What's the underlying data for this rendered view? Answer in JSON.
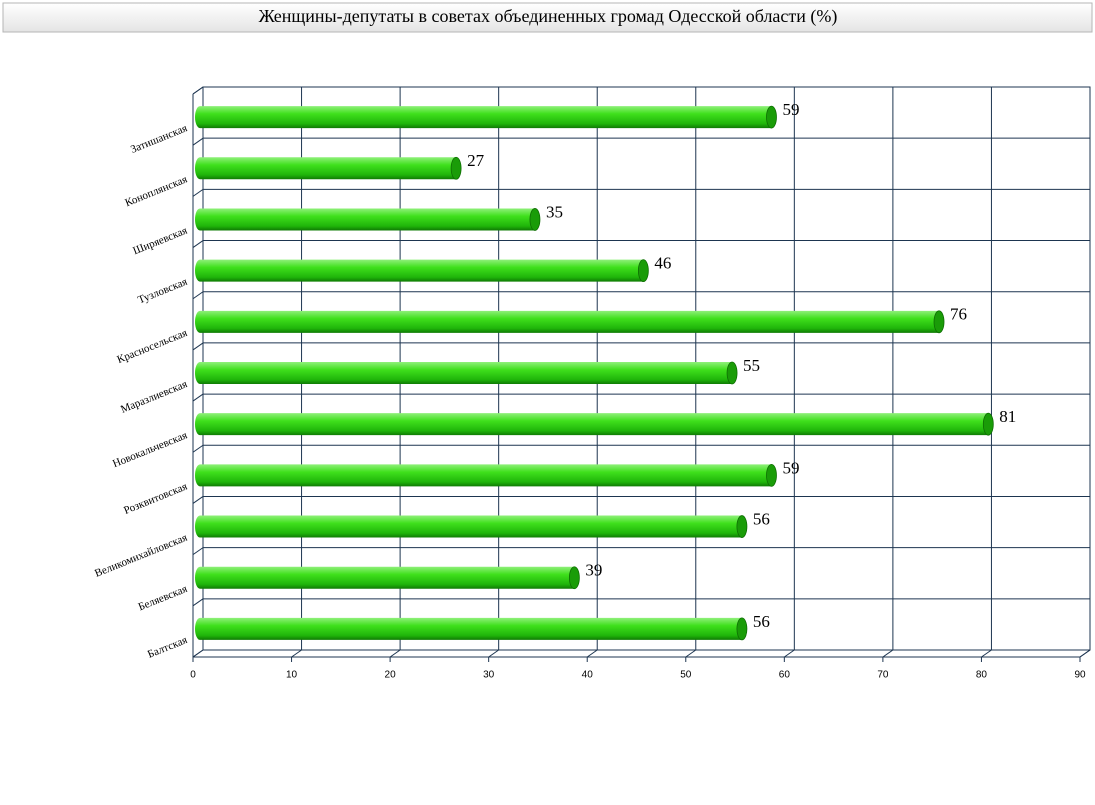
{
  "chart_data": {
    "type": "bar",
    "orientation": "horizontal",
    "title": "Женщины-депутаты в  советах объединенных громад Одесской области (%)",
    "categories": [
      "Затишанская",
      "Коноплянская",
      "Ширяевская",
      "Тузловская",
      "Красносельская",
      "Маразлиевская",
      "Новокальчевская",
      "Розквитовская",
      "Великомихайловская",
      "Беляевская",
      "Балтская"
    ],
    "values": [
      59,
      27,
      35,
      46,
      76,
      55,
      81,
      59,
      56,
      39,
      56
    ],
    "color": "#2fcf0f",
    "xlim": [
      0,
      90
    ],
    "xticks": [
      0,
      10,
      20,
      30,
      40,
      50,
      60,
      70,
      80,
      90
    ],
    "grid": true
  }
}
